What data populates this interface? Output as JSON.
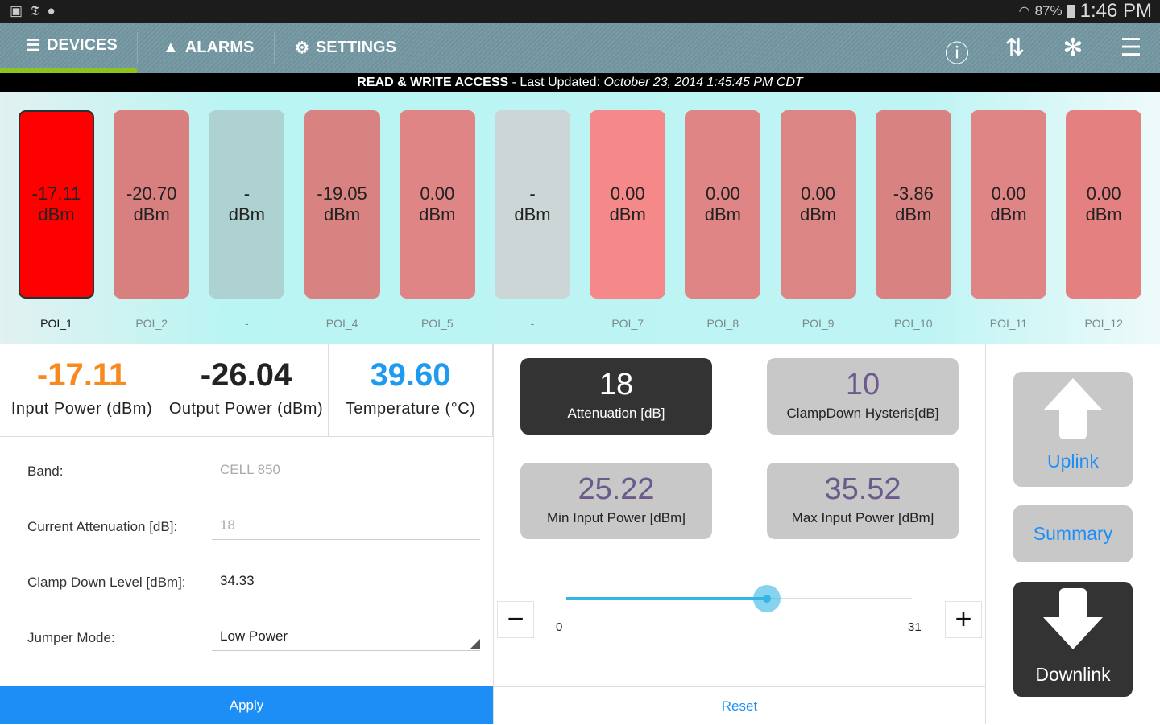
{
  "status_bar": {
    "battery": "87%",
    "time": "1:46 PM"
  },
  "nav": {
    "tabs": [
      {
        "label": "DEVICES",
        "active": true
      },
      {
        "label": "ALARMS"
      },
      {
        "label": "SETTINGS"
      }
    ],
    "icons": [
      "info-icon",
      "refresh-icon",
      "fan-icon",
      "server-icon"
    ]
  },
  "info_bar": {
    "access": "READ & WRITE ACCESS",
    "prefix": " - Last Updated: ",
    "timestamp": "October 23, 2014 1:45:45 PM CDT"
  },
  "pois": [
    {
      "value": "-17.11",
      "unit": "dBm",
      "label": "POI_1",
      "color": "#ff0000",
      "selected": true
    },
    {
      "value": "-20.70",
      "unit": "dBm",
      "label": "POI_2",
      "color": "#d88080"
    },
    {
      "value": "-",
      "unit": "dBm",
      "label": "-",
      "color": "#aed2d2"
    },
    {
      "value": "-19.05",
      "unit": "dBm",
      "label": "POI_4",
      "color": "#d88282"
    },
    {
      "value": "0.00",
      "unit": "dBm",
      "label": "POI_5",
      "color": "#e08585"
    },
    {
      "value": "-",
      "unit": "dBm",
      "label": "-",
      "color": "#ccd6d6"
    },
    {
      "value": "0.00",
      "unit": "dBm",
      "label": "POI_7",
      "color": "#f58888"
    },
    {
      "value": "0.00",
      "unit": "dBm",
      "label": "POI_8",
      "color": "#e08585"
    },
    {
      "value": "0.00",
      "unit": "dBm",
      "label": "POI_9",
      "color": "#dc8585"
    },
    {
      "value": "-3.86",
      "unit": "dBm",
      "label": "POI_10",
      "color": "#d88282"
    },
    {
      "value": "0.00",
      "unit": "dBm",
      "label": "POI_11",
      "color": "#e08585"
    },
    {
      "value": "0.00",
      "unit": "dBm",
      "label": "POI_12",
      "color": "#e48080"
    }
  ],
  "stats": [
    {
      "value": "-17.11",
      "label": "Input Power (dBm)",
      "color": "#f7891f"
    },
    {
      "value": "-26.04",
      "label": "Output Power (dBm)",
      "color": "#222222"
    },
    {
      "value": "39.60",
      "label": "Temperature (°C)",
      "color": "#1e9bf0"
    }
  ],
  "form": {
    "band": {
      "label": "Band:",
      "value": "CELL 850"
    },
    "current_attenuation": {
      "label": "Current Attenuation [dB]:",
      "value": "18"
    },
    "clamp_down": {
      "label": "Clamp Down Level [dBm]:",
      "value": "34.33"
    },
    "jumper_mode": {
      "label": "Jumper Mode:",
      "value": "Low Power"
    },
    "apply": "Apply"
  },
  "params": {
    "attenuation": {
      "value": "18",
      "label": "Attenuation [dB]"
    },
    "hysteresis": {
      "value": "10",
      "label": "ClampDown Hysteris[dB]"
    },
    "min_input": {
      "value": "25.22",
      "label": "Min Input Power [dBm]"
    },
    "max_input": {
      "value": "35.52",
      "label": "Max Input Power [dBm]"
    }
  },
  "slider": {
    "min": "0",
    "max": "31",
    "value": 18,
    "minus": "−",
    "plus": "+"
  },
  "reset": "Reset",
  "direction": {
    "uplink": "Uplink",
    "summary": "Summary",
    "downlink": "Downlink"
  }
}
